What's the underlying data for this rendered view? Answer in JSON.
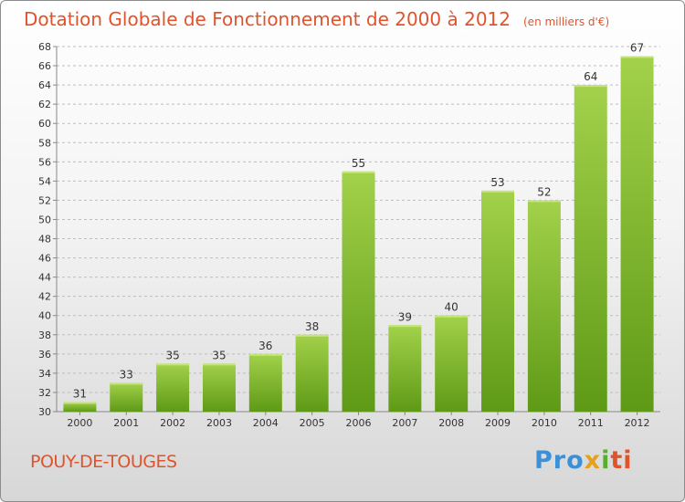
{
  "chart_data": {
    "type": "bar",
    "title": "Dotation Globale de Fonctionnement de 2000 à 2012",
    "unit_note": "(en milliers d'€)",
    "categories": [
      "2000",
      "2001",
      "2002",
      "2003",
      "2004",
      "2005",
      "2006",
      "2007",
      "2008",
      "2009",
      "2010",
      "2011",
      "2012"
    ],
    "values": [
      31,
      33,
      35,
      35,
      36,
      38,
      55,
      39,
      40,
      53,
      52,
      64,
      67
    ],
    "ylim": [
      30,
      68
    ],
    "yticks": [
      30,
      32,
      34,
      36,
      38,
      40,
      42,
      44,
      46,
      48,
      50,
      52,
      54,
      56,
      58,
      60,
      62,
      64,
      66,
      68
    ],
    "grid": "dashed horizontal",
    "bar_color_top": "#a3d14b",
    "bar_color_bottom": "#5e9a16"
  },
  "footer": {
    "city": "POUY-DE-TOUGES",
    "logo_parts": [
      "Pro",
      "x",
      "i",
      "ti"
    ]
  }
}
